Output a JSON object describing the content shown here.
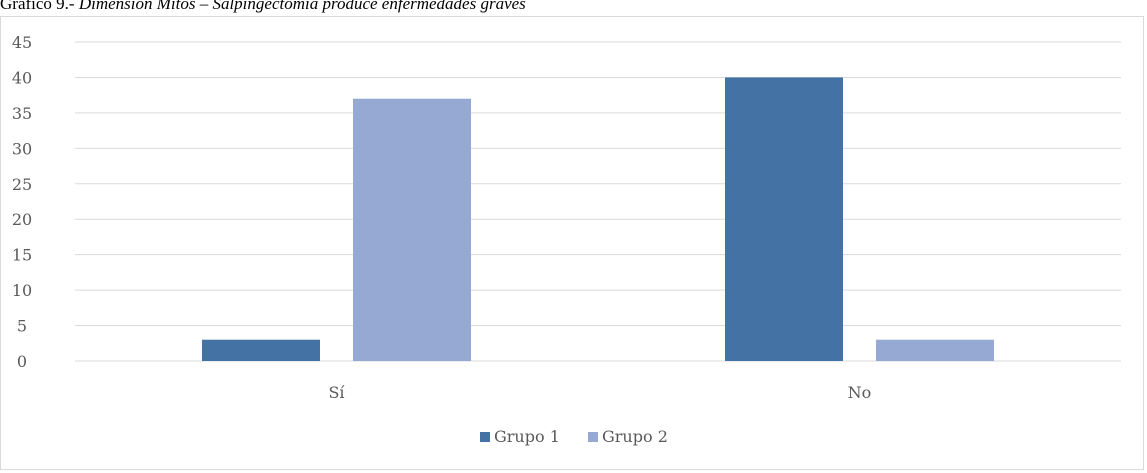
{
  "caption": {
    "prefix": "Gráfico 9.- ",
    "title_italic": "Dimensión Mitos – Salpingectomía produce enfermedades graves"
  },
  "colors": {
    "grupo1": "#4472a4",
    "grupo2": "#95a9d2",
    "gridline": "#d9d9d9",
    "axis_text": "#595959"
  },
  "chart_data": {
    "type": "bar",
    "title": "",
    "xlabel": "",
    "ylabel": "",
    "categories": [
      "Sí",
      "No"
    ],
    "series": [
      {
        "name": "Grupo 1",
        "values": [
          3,
          40
        ]
      },
      {
        "name": "Grupo 2",
        "values": [
          37,
          3
        ]
      }
    ],
    "ylim": [
      0,
      45
    ],
    "yticks": [
      0,
      5,
      10,
      15,
      20,
      25,
      30,
      35,
      40,
      45
    ],
    "grid": true,
    "legend_position": "bottom"
  }
}
